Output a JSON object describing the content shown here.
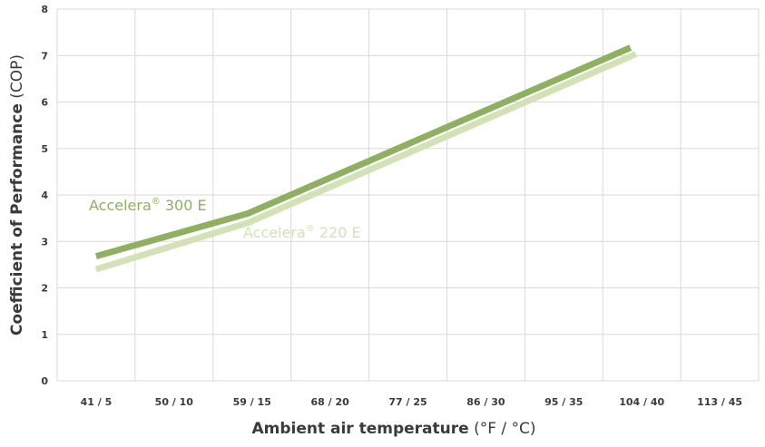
{
  "chart_data": {
    "type": "line",
    "x_categories": [
      "41 / 5",
      "50 / 10",
      "59 / 15",
      "68 / 20",
      "77 / 25",
      "86 / 30",
      "95 / 35",
      "104 / 40",
      "113 / 45"
    ],
    "y_ticks": [
      "0",
      "1",
      "2",
      "3",
      "4",
      "5",
      "6",
      "7",
      "8"
    ],
    "ylim": [
      0,
      8
    ],
    "grid": true,
    "xlabel": {
      "bold": "Ambient air temperature",
      "normal": " (°F / °C)"
    },
    "ylabel": {
      "bold": "Coefficient of Performance",
      "normal": " (COP)"
    },
    "series": [
      {
        "name": "Accelera® 300 E",
        "name_main": "Accelera",
        "name_sup": "®",
        "name_rest": " 300 E",
        "color": "#8fb060",
        "x": [
          41,
          58.5,
          102.7
        ],
        "y": [
          2.68,
          3.6,
          7.17
        ]
      },
      {
        "name": "Accelera® 220 E",
        "name_main": "Accelera",
        "name_sup": "®",
        "name_rest": " 220 E",
        "color": "#d3e2b6",
        "x": [
          41,
          58.5,
          103.3
        ],
        "y": [
          2.4,
          3.4,
          7.03
        ]
      }
    ]
  }
}
